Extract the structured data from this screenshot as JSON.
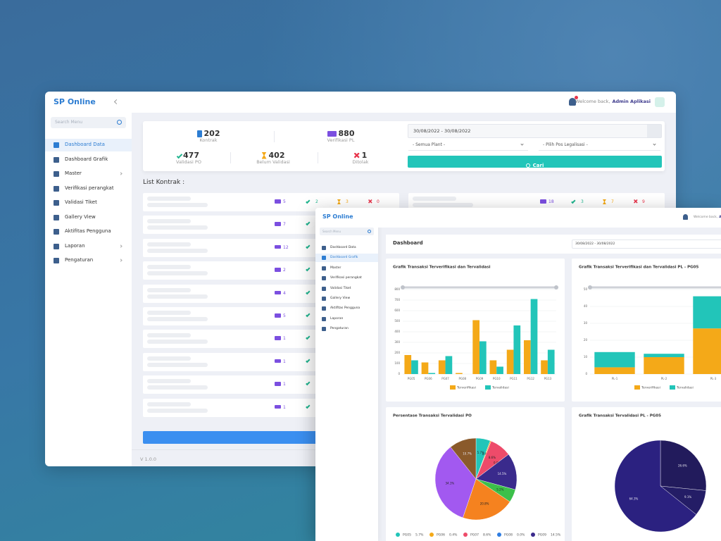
{
  "back_window": {
    "brand": "SP Online",
    "search": "Search Menu",
    "menu": [
      "Dashboard Data",
      "Dashboard Grafik",
      "Master",
      "Verifikasi perangkat",
      "Validasi Tiket",
      "Gallery View",
      "Aktifitas Pengguna",
      "Laporan",
      "Pengaturan"
    ],
    "welcome": "Welcome back,",
    "user": "Admin Aplikasi",
    "stats": [
      {
        "value": 202,
        "label": "Kontrak"
      },
      {
        "value": 880,
        "label": "Verifikasi PL"
      },
      {
        "value": 477,
        "label": "Validasi PO"
      },
      {
        "value": 402,
        "label": "Belum Validasi"
      },
      {
        "value": 1,
        "label": "Ditolak"
      }
    ],
    "filter": {
      "date": "30/08/2022 - 30/08/2022",
      "plant": "- Semua Plant -",
      "pos": "- Pilih Pos Legalisasi -",
      "button": "Cari"
    },
    "list_title": "List Kontrak :",
    "rows_left": [
      [
        5,
        2,
        3,
        0
      ],
      [
        7
      ],
      [
        12
      ],
      [
        2
      ],
      [
        4
      ],
      [
        5
      ],
      [
        1
      ],
      [
        1
      ],
      [
        1
      ],
      [
        1
      ]
    ],
    "rows_right": [
      [
        18,
        3,
        7,
        9
      ]
    ],
    "version": "V 1.0.0"
  },
  "front_window": {
    "brand": "SP Online",
    "search": "Search Menu",
    "menu": [
      "Dashboard Data",
      "Dashboard Grafik",
      "Master",
      "Verifikasi perangkat",
      "Validasi Tiket",
      "Gallery View",
      "Aktifitas Pengguna",
      "Laporan",
      "Pengaturan"
    ],
    "welcome": "Welcome back,",
    "user": "Admin Aplikasi",
    "page_title": "Dashboard",
    "date": "30/08/2022 - 30/08/2022"
  },
  "chart_data": [
    {
      "type": "bar",
      "title": "Grafik Transaksi Terverifikasi dan Tervalidasi",
      "categories": [
        "PG05",
        "PG06",
        "PG07",
        "PG08",
        "PG09",
        "PG10",
        "PG11",
        "PG12",
        "PG13"
      ],
      "series": [
        {
          "name": "Terverifikasi",
          "color": "#f4a918",
          "values": [
            180,
            110,
            130,
            10,
            510,
            130,
            230,
            320,
            130
          ]
        },
        {
          "name": "Tervalidasi",
          "color": "#22c5b9",
          "values": [
            130,
            10,
            170,
            0,
            310,
            70,
            460,
            710,
            230
          ]
        }
      ],
      "ylim": [
        0,
        800
      ],
      "yticks": [
        0,
        100,
        200,
        300,
        400,
        500,
        600,
        700,
        800
      ],
      "grid": true
    },
    {
      "type": "bar",
      "stacked": true,
      "title": "Grafik Transaksi Terverifikasi dan Tervalidasi PL - PG05",
      "categories": [
        "PL-1",
        "PL-2",
        "PL-3"
      ],
      "series": [
        {
          "name": "Terverifikasi",
          "color": "#f4a918",
          "values": [
            4,
            10,
            27
          ]
        },
        {
          "name": "Tervalidasi",
          "color": "#22c5b9",
          "values": [
            9,
            2,
            19
          ]
        }
      ],
      "ylim": [
        0,
        50
      ],
      "yticks": [
        0,
        10,
        20,
        30,
        40,
        50
      ],
      "grid": true
    },
    {
      "type": "pie",
      "title": "Persentase Transaksi Tervalidasi PO",
      "categories": [
        "PG05",
        "PG06",
        "PG07",
        "PG08",
        "PG09",
        "PG10",
        "PG11",
        "PG12",
        "PG13"
      ],
      "values": [
        5.7,
        0.4,
        8.6,
        0.0,
        14.5,
        5.2,
        20.8,
        34.1,
        10.7
      ],
      "value_labels": [
        "5.7%",
        "0.4%",
        "8.6%",
        "0.0%",
        "14.5%",
        "5.2%",
        "20.8%",
        "34.1%",
        "10.7%"
      ],
      "colors": [
        "#22c5b9",
        "#f4a918",
        "#ee4b6a",
        "#2f7de1",
        "#3a2a8c",
        "#3cc04a",
        "#f5821f",
        "#a259f0",
        "#8a5a2b"
      ]
    },
    {
      "type": "pie",
      "title": "Grafik Transaksi Tervalidasi PL - PG05",
      "values": [
        26.6,
        9.1,
        64.3
      ],
      "value_labels": [
        "26.6%",
        "9.1%",
        "64.3%"
      ],
      "colors": [
        "#221b5c",
        "#241d66",
        "#2b2180"
      ]
    }
  ]
}
